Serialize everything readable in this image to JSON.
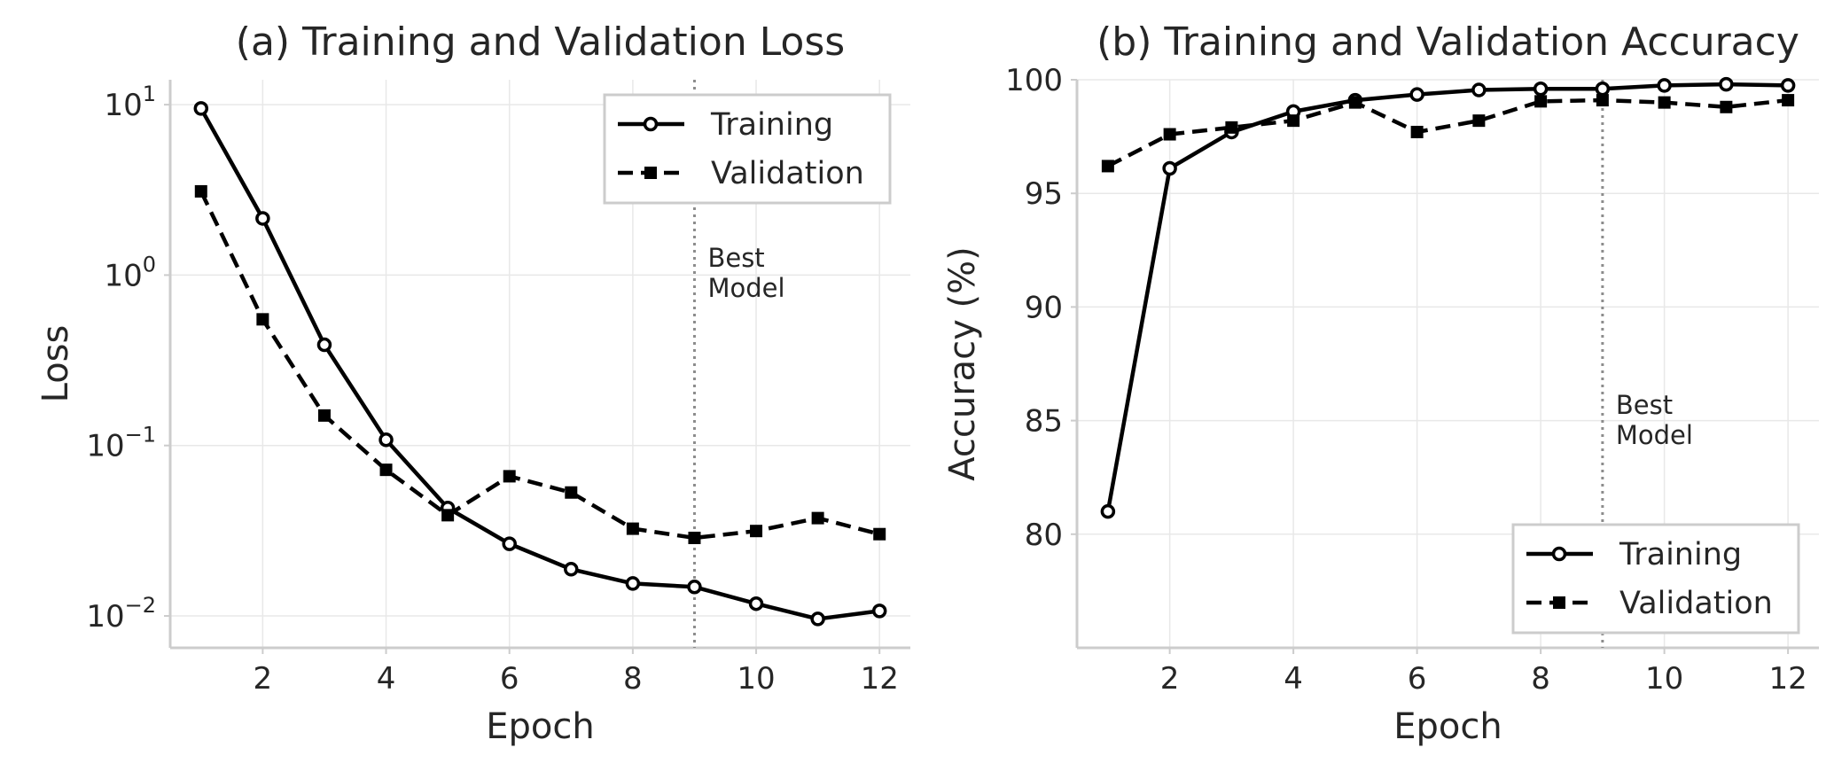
{
  "chart_data": [
    {
      "type": "line",
      "title": "(a) Training and Validation Loss",
      "xlabel": "Epoch",
      "ylabel": "Loss",
      "yscale": "log",
      "xlim": [
        0.5,
        12.5
      ],
      "ylim": [
        0.0065,
        14
      ],
      "x": [
        1,
        2,
        3,
        4,
        5,
        6,
        7,
        8,
        9,
        10,
        11,
        12
      ],
      "xticks": [
        2,
        4,
        6,
        8,
        10,
        12
      ],
      "yticks": [
        {
          "value": 0.01,
          "base": "10",
          "exp": "−2"
        },
        {
          "value": 0.1,
          "base": "10",
          "exp": "−1"
        },
        {
          "value": 1,
          "base": "10",
          "exp": "0"
        },
        {
          "value": 10,
          "base": "10",
          "exp": "1"
        }
      ],
      "series": [
        {
          "name": "Training",
          "style": "solid",
          "marker": "circle-open",
          "values": [
            9.5,
            2.15,
            0.39,
            0.108,
            0.043,
            0.0265,
            0.0188,
            0.0155,
            0.0148,
            0.0118,
            0.0096,
            0.0107
          ]
        },
        {
          "name": "Validation",
          "style": "dashed",
          "marker": "square-filled",
          "values": [
            3.1,
            0.55,
            0.15,
            0.072,
            0.039,
            0.066,
            0.053,
            0.0325,
            0.0287,
            0.0315,
            0.0375,
            0.0302
          ]
        }
      ],
      "vline": {
        "x": 9,
        "label": [
          "Best",
          "Model"
        ]
      },
      "legend": {
        "placement": "top-right"
      },
      "grid": true
    },
    {
      "type": "line",
      "title": "(b) Training and Validation Accuracy",
      "xlabel": "Epoch",
      "ylabel": "Accuracy (%)",
      "yscale": "linear",
      "xlim": [
        0.5,
        12.5
      ],
      "ylim": [
        75,
        100
      ],
      "x": [
        1,
        2,
        3,
        4,
        5,
        6,
        7,
        8,
        9,
        10,
        11,
        12
      ],
      "xticks": [
        2,
        4,
        6,
        8,
        10,
        12
      ],
      "yticks": [
        {
          "value": 80,
          "text": "80"
        },
        {
          "value": 85,
          "text": "85"
        },
        {
          "value": 90,
          "text": "90"
        },
        {
          "value": 95,
          "text": "95"
        },
        {
          "value": 100,
          "text": "100"
        }
      ],
      "series": [
        {
          "name": "Training",
          "style": "solid",
          "marker": "circle-open",
          "values": [
            81.0,
            96.1,
            97.7,
            98.6,
            99.1,
            99.35,
            99.55,
            99.6,
            99.6,
            99.75,
            99.8,
            99.75
          ]
        },
        {
          "name": "Validation",
          "style": "dashed",
          "marker": "square-filled",
          "values": [
            96.2,
            97.6,
            97.9,
            98.2,
            99.0,
            97.7,
            98.2,
            99.05,
            99.1,
            99.0,
            98.8,
            99.1
          ]
        }
      ],
      "vline": {
        "x": 9,
        "label": [
          "Best",
          "Model"
        ]
      },
      "legend": {
        "placement": "bottom-right"
      },
      "grid": true
    }
  ]
}
